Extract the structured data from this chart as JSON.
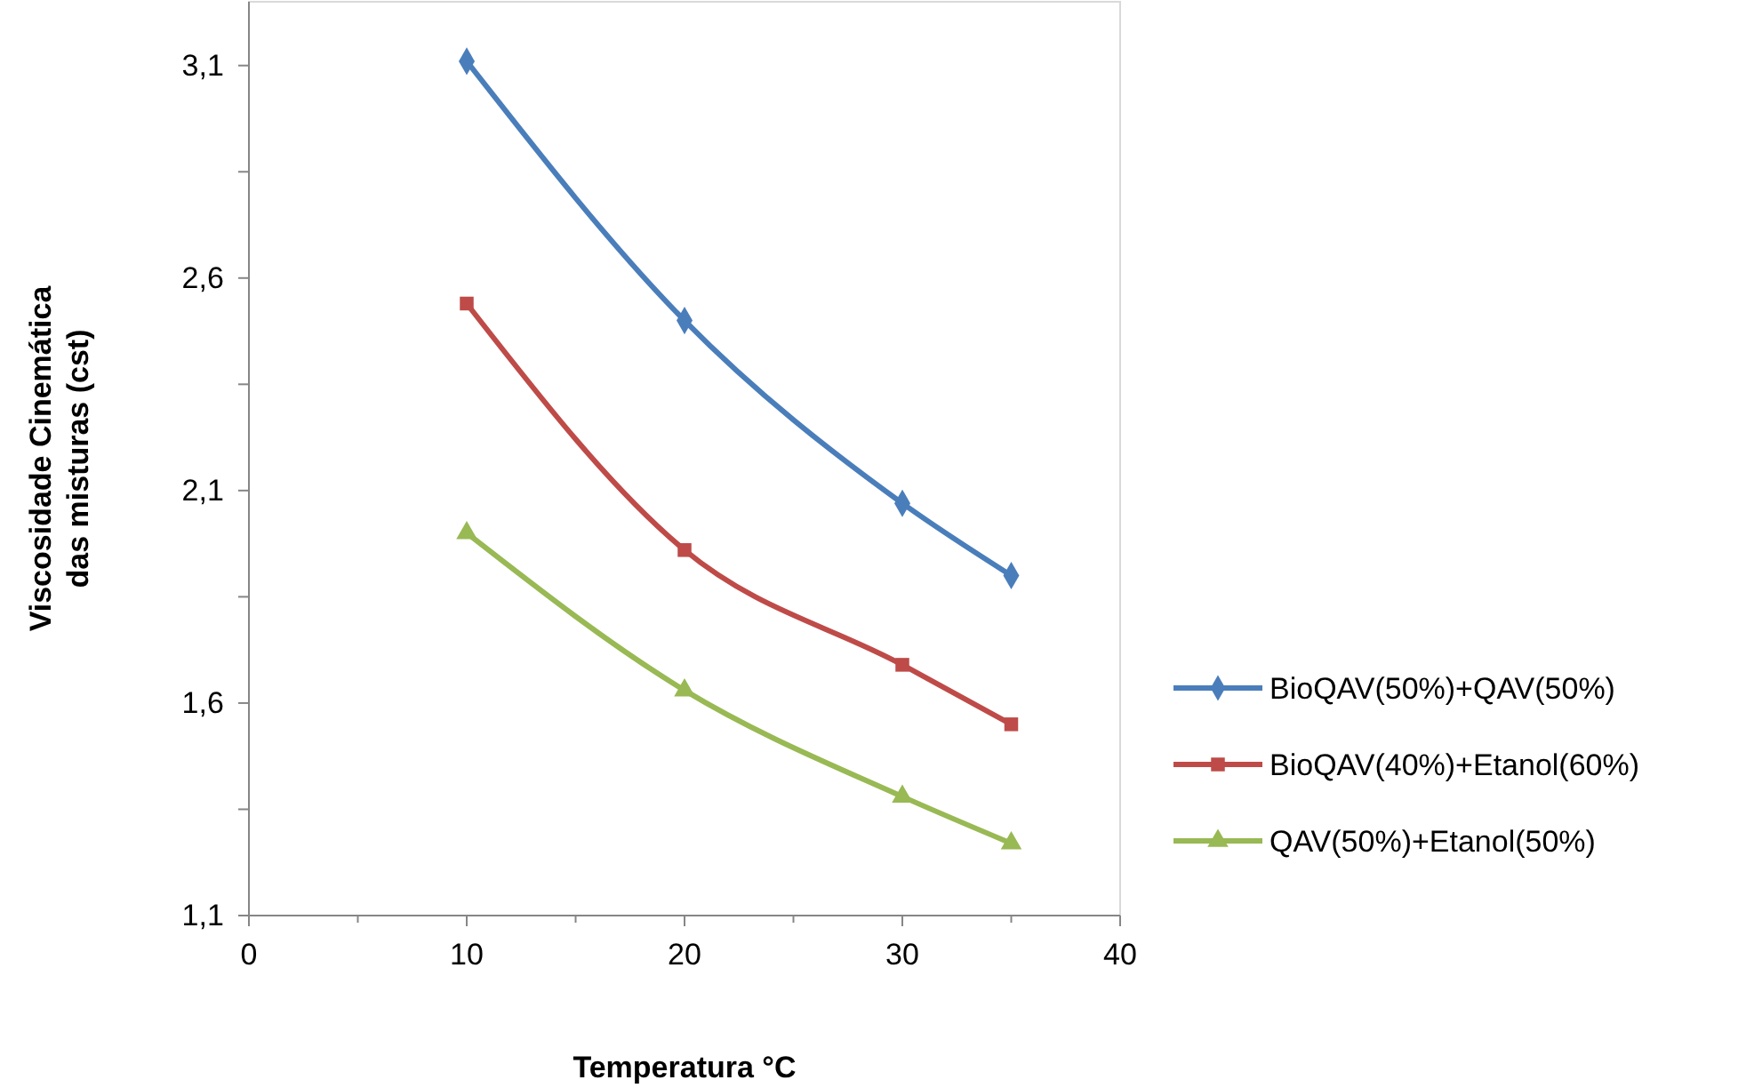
{
  "chart_data": {
    "type": "line",
    "xlabel": "Temperatura °C",
    "ylabel": "Viscosidade Cinemática das misturas (cst)",
    "x": [
      10,
      20,
      30,
      35
    ],
    "series": [
      {
        "name": "BioQAV(50%)+QAV(50%)",
        "color": "#4a7ebb",
        "marker": "diamond",
        "values": [
          3.11,
          2.5,
          2.07,
          1.9
        ]
      },
      {
        "name": "BioQAV(40%)+Etanol(60%)",
        "color": "#be4b48",
        "marker": "square",
        "values": [
          2.54,
          1.96,
          1.69,
          1.55
        ]
      },
      {
        "name": "QAV(50%)+Etanol(50%)",
        "color": "#98b954",
        "marker": "triangle",
        "values": [
          2.0,
          1.63,
          1.38,
          1.27
        ]
      }
    ],
    "xlim": [
      0,
      40
    ],
    "xticks": [
      0,
      10,
      20,
      30,
      40
    ],
    "ylim": [
      1.1,
      3.25
    ],
    "yticks": [
      {
        "value": 1.1,
        "label": "1,1"
      },
      {
        "value": 1.35,
        "label": null
      },
      {
        "value": 1.6,
        "label": "1,6"
      },
      {
        "value": 1.85,
        "label": null
      },
      {
        "value": 2.1,
        "label": "2,1"
      },
      {
        "value": 2.35,
        "label": null
      },
      {
        "value": 2.6,
        "label": "2,6"
      },
      {
        "value": 2.85,
        "label": null
      },
      {
        "value": 3.1,
        "label": "3,1"
      }
    ],
    "grid": false,
    "legend": "right",
    "line_style": "solid"
  }
}
